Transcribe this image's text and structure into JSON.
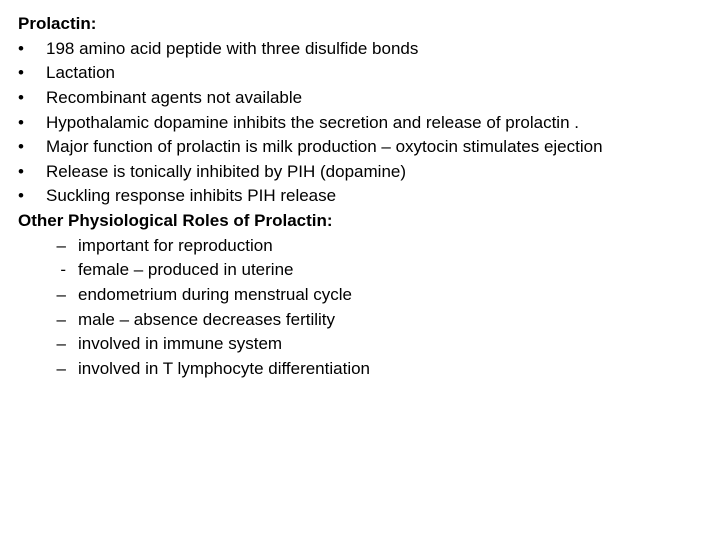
{
  "heading1": "Prolactin:",
  "bullets": [
    "198 amino acid peptide with three disulfide bonds",
    "Lactation",
    "Recombinant agents not available",
    "Hypothalamic dopamine inhibits the secretion and release of prolactin .",
    "Major function of prolactin is milk production – oxytocin stimulates ejection",
    "Release is tonically inhibited by PIH (dopamine)",
    "Suckling response inhibits PIH release"
  ],
  "heading2": "Other Physiological Roles of Prolactin:",
  "subitems": [
    {
      "marker": "–",
      "text": "important for reproduction"
    },
    {
      "marker": "-",
      "text": "female – produced in uterine"
    },
    {
      "marker": "–",
      "text": "endometrium during menstrual cycle"
    },
    {
      "marker": "–",
      "text": "male – absence decreases fertility"
    },
    {
      "marker": "–",
      "text": "involved in immune system"
    },
    {
      "marker": "–",
      "text": "involved in T lymphocyte differentiation"
    }
  ],
  "bullet_char": "•"
}
